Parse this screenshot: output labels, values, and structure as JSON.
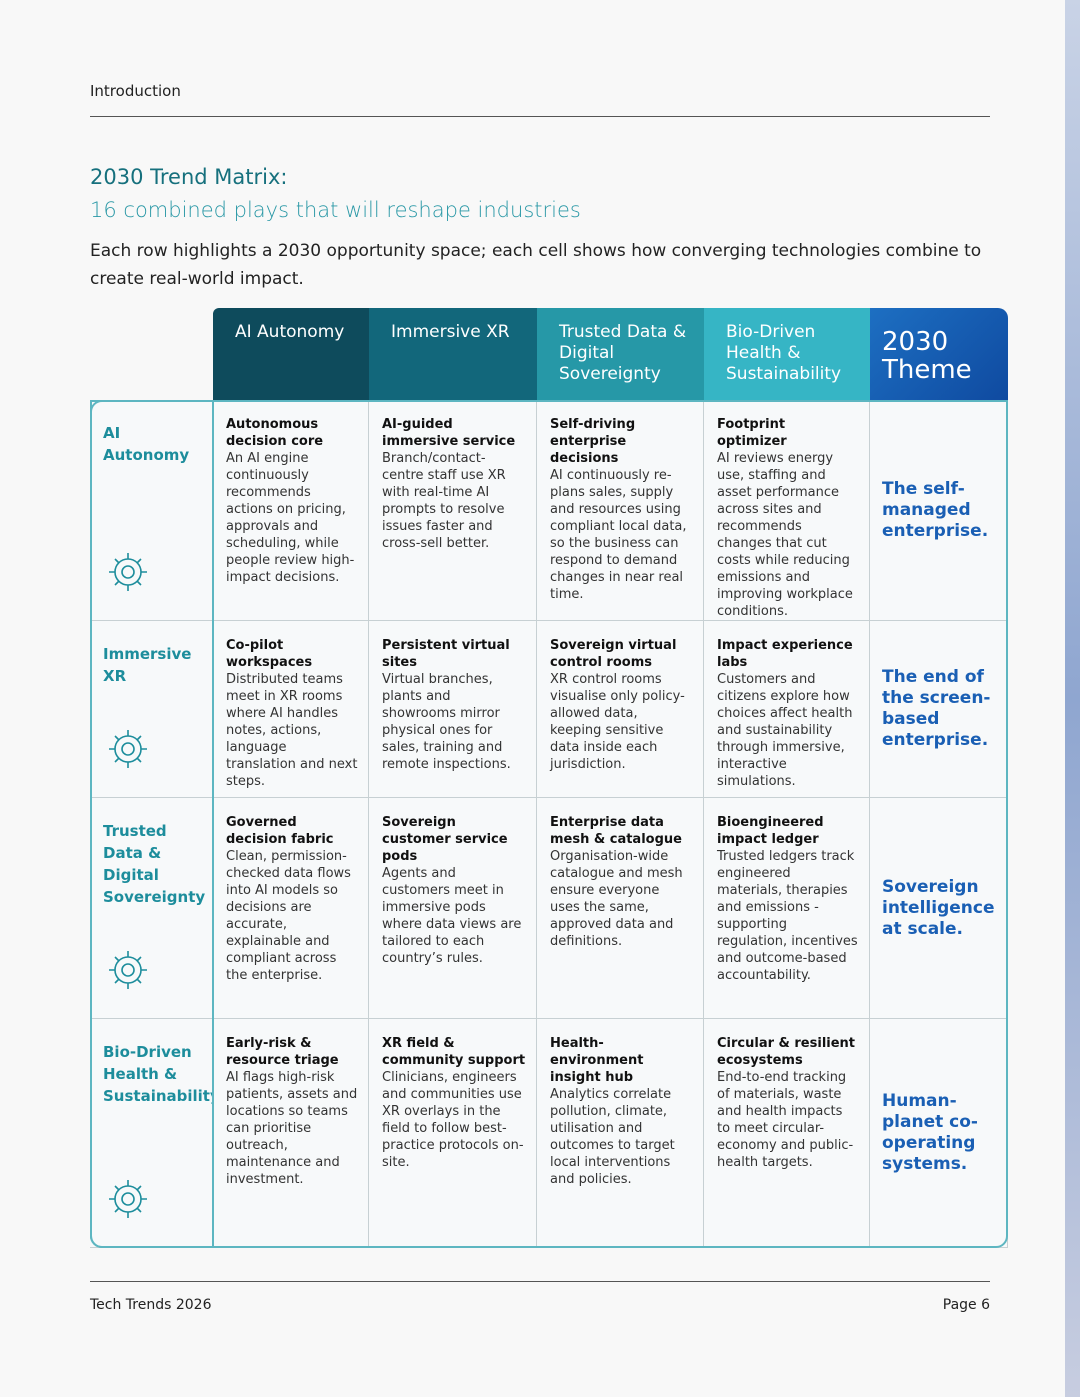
{
  "header": {
    "section": "Introduction"
  },
  "title": "2030 Trend Matrix:",
  "subtitle": "16 combined plays that will reshape industries",
  "intro": "Each row highlights a 2030 opportunity space; each cell shows how converging technologies combine to create real-world impact.",
  "table": {
    "columns": [
      "AI Autonomy",
      "Immersive XR",
      "Trusted Data & Digital Sovereignty",
      "Bio-Driven Health & Sustainability",
      "2030 Theme"
    ],
    "rows": [
      {
        "label": "AI Autonomy",
        "cells": [
          {
            "title": "Autonomous decision core",
            "body": "An AI engine continuously recommends actions on pricing, approvals and scheduling, while people review high-impact decisions."
          },
          {
            "title": "AI-guided immersive service",
            "body": "Branch/contact-centre staff use XR with real-time AI prompts to resolve issues faster and cross-sell better."
          },
          {
            "title": "Self-driving enterprise decisions",
            "body": "AI continuously re-plans sales, supply and resources using compliant local data, so the business can respond to demand changes in near real time."
          },
          {
            "title": "Footprint optimizer",
            "body": "AI reviews energy use, staffing and asset performance across sites and recommends changes that cut costs while reducing emissions and improving workplace conditions."
          }
        ],
        "theme": "The self-managed enterprise."
      },
      {
        "label": "Immersive XR",
        "cells": [
          {
            "title": "Co-pilot workspaces",
            "body": "Distributed teams meet in XR rooms where AI handles notes, actions, language translation and next steps."
          },
          {
            "title": "Persistent virtual sites",
            "body": "Virtual branches, plants and showrooms mirror physical ones for sales, training and remote inspections."
          },
          {
            "title": "Sovereign virtual control rooms",
            "body": "XR control rooms visualise only policy-allowed data, keeping sensitive data inside each jurisdiction."
          },
          {
            "title": "Impact experience labs",
            "body": "Customers and citizens explore how choices affect health and sustainability through immersive, interactive simulations."
          }
        ],
        "theme": "The end of the screen-based enterprise."
      },
      {
        "label": "Trusted Data & Digital Sovereignty",
        "cells": [
          {
            "title": "Governed decision fabric",
            "body": "Clean, permission-checked data flows into AI models so decisions are accurate, explainable and compliant across the enterprise."
          },
          {
            "title": "Sovereign customer service pods",
            "body": "Agents and customers meet in immersive pods where data views are tailored to each country’s rules."
          },
          {
            "title": "Enterprise data mesh & catalogue",
            "body": "Organisation-wide catalogue and mesh ensure everyone uses the same, approved data and definitions."
          },
          {
            "title": "Bioengineered impact ledger",
            "body": "Trusted ledgers track engineered materials, therapies and emissions - supporting regulation, incentives and outcome-based accountability."
          }
        ],
        "theme": "Sovereign intelligence at scale."
      },
      {
        "label": "Bio-Driven Health & Sustainability",
        "cells": [
          {
            "title": "Early-risk & resource triage",
            "body": "AI flags high-risk patients, assets and locations so teams can prioritise outreach, maintenance and investment."
          },
          {
            "title": "XR field & community support",
            "body": "Clinicians, engineers and communities use XR overlays in the field to follow best-practice protocols on-site."
          },
          {
            "title": "Health-environment insight hub",
            "body": "Analytics correlate pollution, climate, utilisation and outcomes to target local interventions and policies."
          },
          {
            "title": "Circular & resilient ecosystems",
            "body": "End-to-end tracking of materials, waste and health impacts to meet circular-economy and public-health targets."
          }
        ],
        "theme": "Human-planet co-operating systems."
      }
    ]
  },
  "footer": {
    "left": "Tech Trends 2026",
    "right": "Page 6"
  }
}
